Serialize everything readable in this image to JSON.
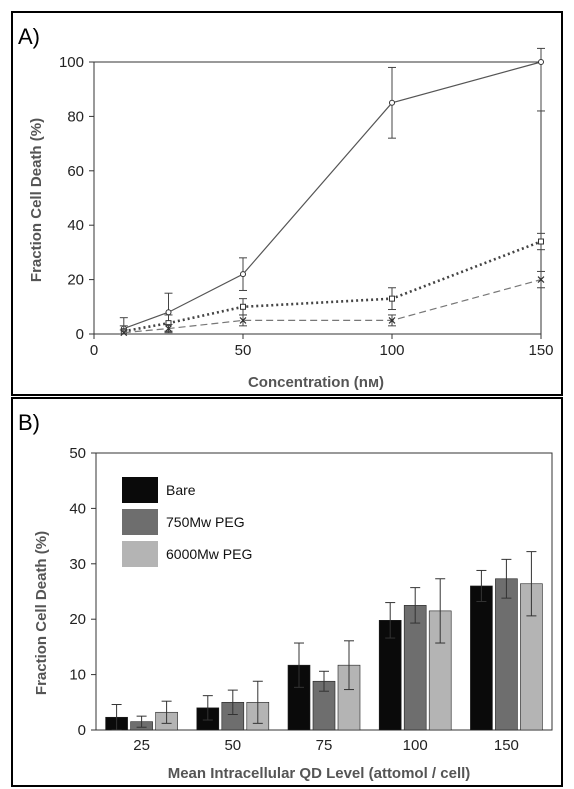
{
  "chart_data": [
    {
      "panel_label": "A)",
      "type": "line",
      "xlabel": "Concentration (nм)",
      "ylabel": "Fraction Cell Death (%)",
      "xlim": [
        0,
        150
      ],
      "ylim": [
        0,
        100
      ],
      "x_ticks": [
        0,
        50,
        100,
        150
      ],
      "y_ticks": [
        0,
        20,
        40,
        60,
        80,
        100
      ],
      "grid": false,
      "series": [
        {
          "marker": "circle",
          "line": "solid",
          "color": "#555555",
          "x": [
            10,
            25,
            50,
            100,
            150
          ],
          "y": [
            2,
            8,
            22,
            85,
            100
          ],
          "err": [
            4,
            7,
            6,
            13,
            18
          ]
        },
        {
          "marker": "square",
          "line": "dotted",
          "color": "#444444",
          "x": [
            10,
            25,
            50,
            100,
            150
          ],
          "y": [
            1,
            4,
            10,
            13,
            34
          ],
          "err": [
            2,
            3,
            3,
            4,
            3
          ]
        },
        {
          "marker": "cross",
          "line": "dashed",
          "color": "#777777",
          "x": [
            10,
            25,
            50,
            100,
            150
          ],
          "y": [
            0.5,
            2,
            5,
            5,
            20
          ],
          "err": [
            1,
            1.5,
            2,
            2,
            3
          ]
        }
      ]
    },
    {
      "panel_label": "B)",
      "type": "bar",
      "xlabel": "Mean Intracellular QD Level (attomol / cell)",
      "ylabel": "Fraction Cell Death (%)",
      "ylim": [
        0,
        50
      ],
      "y_ticks": [
        0,
        10,
        20,
        30,
        40,
        50
      ],
      "categories": [
        "25",
        "50",
        "75",
        "100",
        "150"
      ],
      "grid": false,
      "legend_position": "top-left",
      "series": [
        {
          "name": "Bare",
          "color": "#0a0a0a",
          "values": [
            2.3,
            4.0,
            11.7,
            19.8,
            26.0
          ],
          "err": [
            2.3,
            2.2,
            4.0,
            3.2,
            2.8
          ]
        },
        {
          "name": "750Mw PEG",
          "color": "#6e6e6e",
          "values": [
            1.5,
            5.0,
            8.8,
            22.5,
            27.3
          ],
          "err": [
            1.0,
            2.2,
            1.8,
            3.2,
            3.5
          ]
        },
        {
          "name": "6000Mw PEG",
          "color": "#b4b4b4",
          "values": [
            3.2,
            5.0,
            11.7,
            21.5,
            26.4
          ],
          "err": [
            2.0,
            3.8,
            4.4,
            5.8,
            5.8
          ]
        }
      ]
    }
  ]
}
